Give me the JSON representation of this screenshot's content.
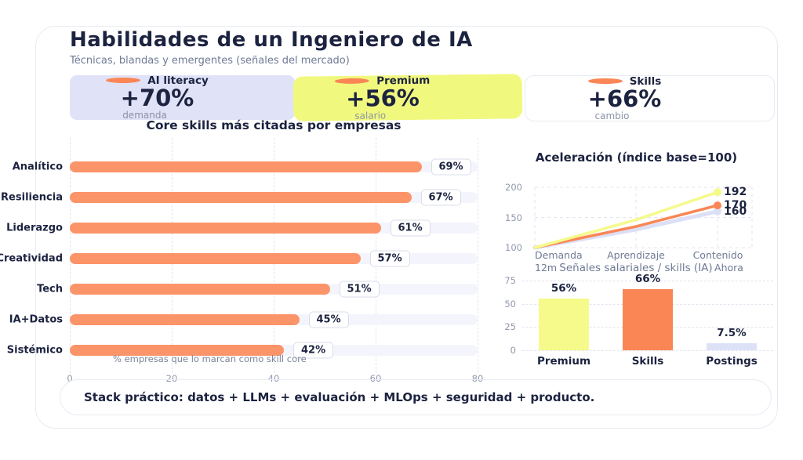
{
  "colors": {
    "orange": "#FA8656",
    "orange_bar": "#FC9469",
    "yellow": "#F1F87E",
    "yellow_bright": "#F5FA8A",
    "lavender": "#E0E2F8",
    "lavender_track": "#F4F5FC",
    "navy": "#1C2340",
    "gray": "#6F7A95"
  },
  "header": {
    "title": "Habilidades de un Ingeniero de IA",
    "subtitle": "Técnicas, blandas y emergentes (señales del mercado)"
  },
  "stat_cards": [
    {
      "icon": "orange-dash-icon",
      "label": "AI literacy",
      "value": "+70%",
      "caption": "demanda"
    },
    {
      "icon": "orange-dash-icon",
      "label": "Premium",
      "value": "+56%",
      "caption": "salario"
    },
    {
      "icon": "orange-dash-icon",
      "label": "Skills",
      "value": "+66%",
      "caption": "cambio"
    }
  ],
  "chart_data": [
    {
      "type": "bar",
      "orientation": "horizontal",
      "title": "Core skills más citadas por empresas",
      "categories": [
        "Analítico",
        "Resiliencia",
        "Liderazgo",
        "Creatividad",
        "Tech",
        "IA+Datos",
        "Sistémico"
      ],
      "values": [
        69,
        67,
        61,
        57,
        51,
        45,
        42
      ],
      "value_labels": [
        "69%",
        "67%",
        "61%",
        "57%",
        "51%",
        "45%",
        "42%"
      ],
      "footnote": "% empresas que lo marcan como skill core",
      "xlabel": "",
      "xlim": [
        0,
        80
      ],
      "x_ticks": [
        0,
        20,
        40,
        60,
        80
      ],
      "bar_color": "#FC9469",
      "grid": true
    },
    {
      "type": "line",
      "title": "Aceleración (índice base=100)",
      "x_labels": [
        [
          "Demanda",
          "12m"
        ],
        [
          "Aprendizaje"
        ],
        [
          "Contenido",
          "Ahora"
        ]
      ],
      "series": [
        {
          "name": "series-yellow",
          "color": "#F5FA8A",
          "values": [
            100,
            146,
            192
          ],
          "end_label": "192"
        },
        {
          "name": "series-orange",
          "color": "#FA8656",
          "values": [
            100,
            135,
            170
          ],
          "end_label": "170"
        },
        {
          "name": "series-lavender",
          "color": "#DCE0F6",
          "values": [
            100,
            130,
            160
          ],
          "end_label": "160"
        }
      ],
      "ylim": [
        100,
        200
      ],
      "y_ticks": [
        100,
        150,
        200
      ],
      "grid": true
    },
    {
      "type": "bar",
      "orientation": "vertical",
      "title": "Señales salariales / skills (IA)",
      "categories": [
        "Premium",
        "Skills",
        "Postings"
      ],
      "values": [
        56,
        66,
        7.5
      ],
      "value_labels": [
        "56%",
        "66%",
        "7.5%"
      ],
      "colors": [
        "#F5FA8A",
        "#FA8656",
        "#DDE1F8"
      ],
      "ylim": [
        0,
        75
      ],
      "y_ticks": [
        0,
        25,
        50,
        75
      ],
      "grid": true
    }
  ],
  "footer": {
    "text": "Stack práctico: datos + LLMs + evaluación + MLOps + seguridad + producto."
  }
}
